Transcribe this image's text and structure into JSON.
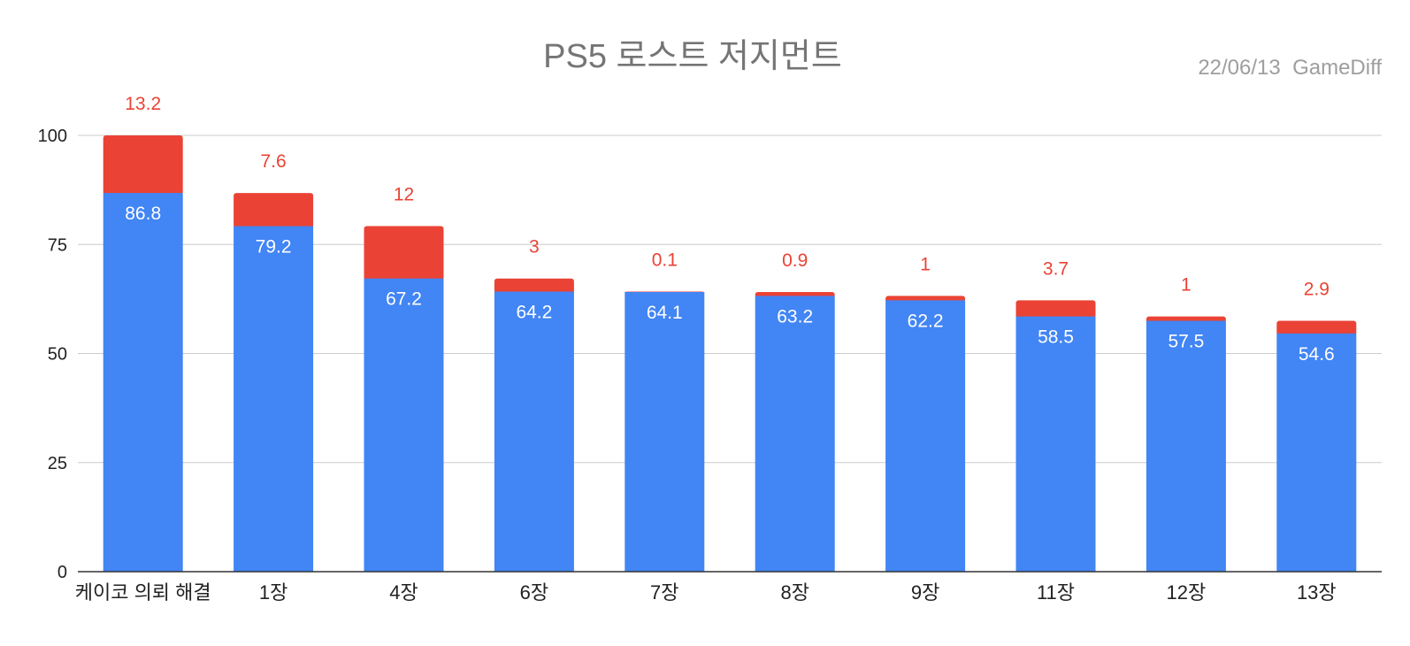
{
  "chart_data": {
    "type": "bar",
    "stacked": true,
    "title": "PS5 로스트 저지먼트",
    "subtitle": "22/06/13  GameDiff",
    "xlabel": "",
    "ylabel": "",
    "ylim": [
      0,
      100
    ],
    "yticks": [
      "0",
      "25",
      "50",
      "75",
      "100"
    ],
    "grid": true,
    "categories": [
      "케이코 의뢰 해결",
      "1장",
      "4장",
      "6장",
      "7장",
      "8장",
      "9장",
      "11장",
      "12장",
      "13장"
    ],
    "series": [
      {
        "color": "#4285f4",
        "values": [
          86.8,
          79.2,
          67.2,
          64.2,
          64.1,
          63.2,
          62.2,
          58.5,
          57.5,
          54.6
        ]
      },
      {
        "color": "#ea4335",
        "values": [
          13.2,
          7.6,
          12,
          3,
          0.1,
          0.9,
          1,
          3.7,
          1,
          2.9
        ]
      }
    ],
    "data_labels": {
      "base": [
        "86.8",
        "79.2",
        "67.2",
        "64.2",
        "64.1",
        "63.2",
        "62.2",
        "58.5",
        "57.5",
        "54.6"
      ],
      "top": [
        "13.2",
        "7.6",
        "12",
        "3",
        "0.1",
        "0.9",
        "1",
        "3.7",
        "1",
        "2.9"
      ]
    }
  }
}
